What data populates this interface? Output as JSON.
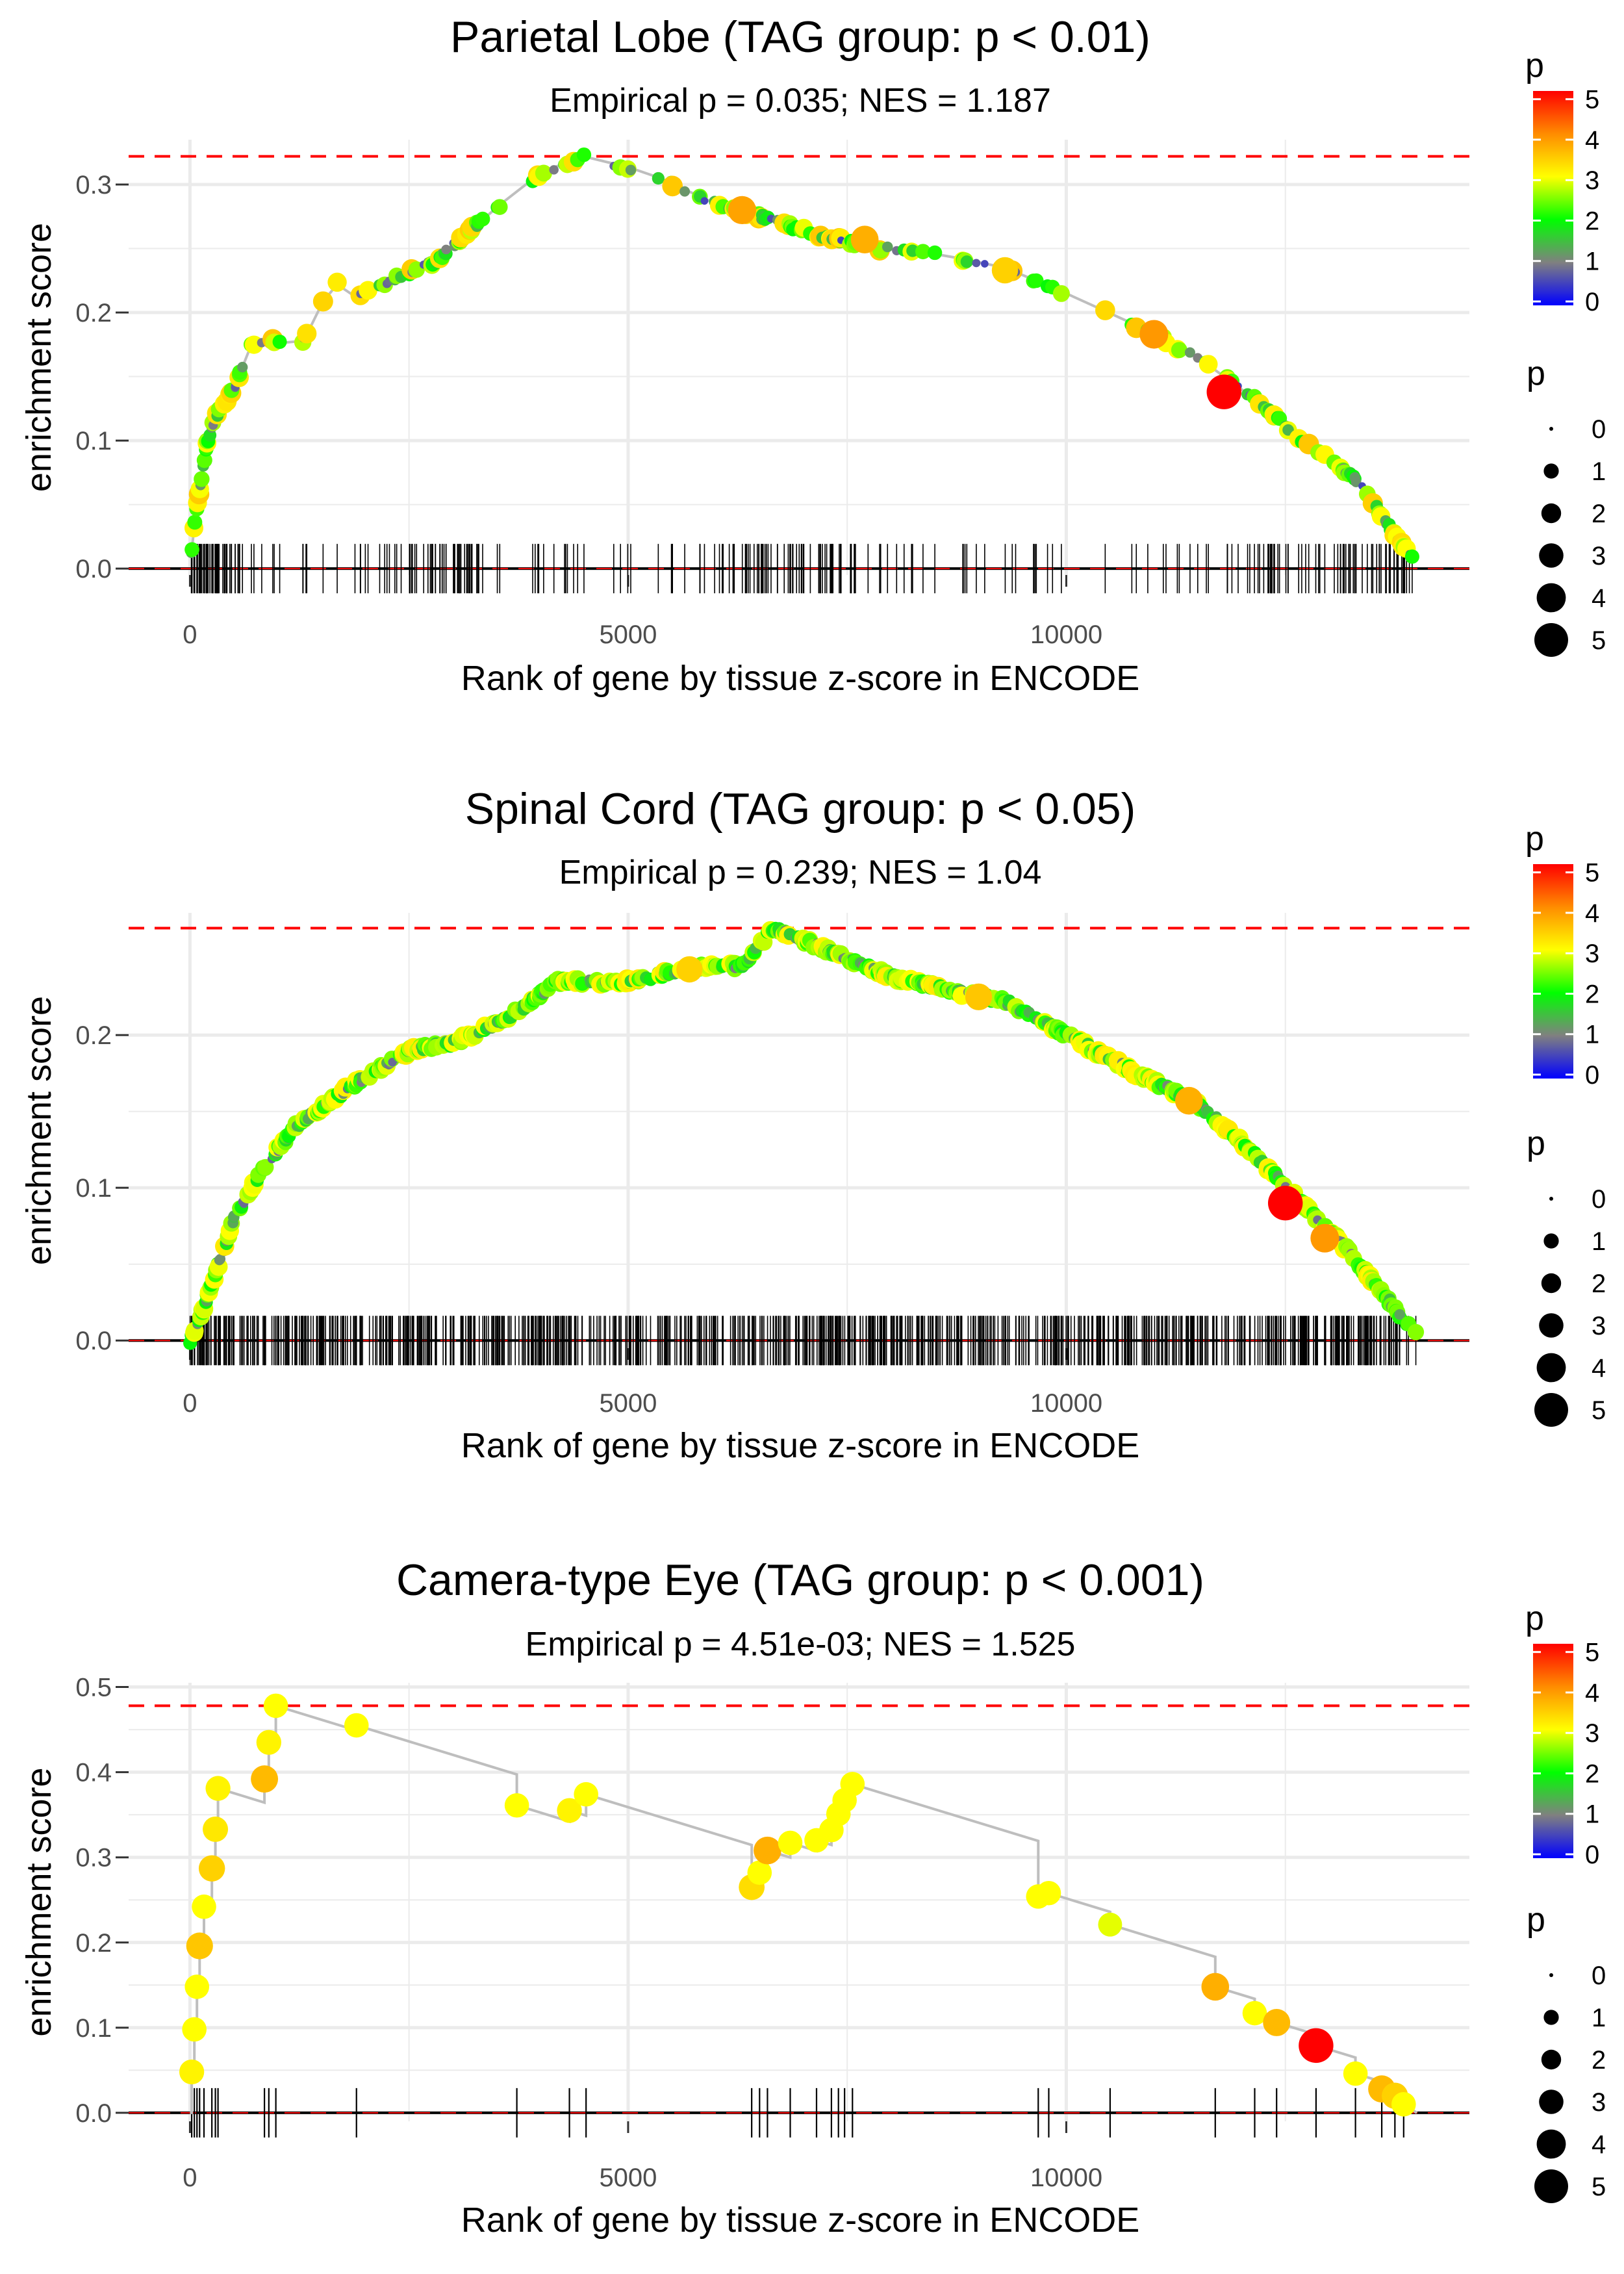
{
  "colors": {
    "threshold_line": "#ff0000",
    "curve": "#bebebe",
    "grid": "#ebebeb",
    "tick_mark": "#000000",
    "gradient_stops": [
      "#0000ff",
      "#808080",
      "#00ff00",
      "#ffff00",
      "#ff8c00",
      "#ff0000"
    ]
  },
  "chart_data": [
    {
      "type": "line",
      "title": "Parietal Lobe (TAG group: p < 0.01)",
      "subtitle": "Empirical p = 0.035; NES = 1.187",
      "xlabel": "Rank of gene by tissue z-score in ENCODE",
      "ylabel": "enrichment score",
      "xlim": [
        -700,
        14600
      ],
      "ylim": [
        -0.005,
        0.335
      ],
      "x_ticks": [
        0,
        5000,
        10000
      ],
      "x_tick_labels": [
        "0",
        "5000",
        "10000"
      ],
      "y_ticks": [
        0,
        0.1,
        0.2,
        0.3
      ],
      "y_tick_labels": [
        "0.0",
        "0.1",
        "0.2",
        "0.3"
      ],
      "max_es": 0.322,
      "max_at": 4500,
      "n_hits": 320,
      "hit_seed": 11,
      "ranks_end": 14000,
      "rank_bands": [
        [
          0,
          600
        ],
        [
          2200,
          3300
        ],
        [
          5800,
          7600
        ],
        [
          12200,
          14000
        ]
      ],
      "profile": [
        [
          0,
          0
        ],
        [
          60,
          0.04
        ],
        [
          200,
          0.1
        ],
        [
          300,
          0.12
        ],
        [
          500,
          0.14
        ],
        [
          700,
          0.175
        ],
        [
          900,
          0.178
        ],
        [
          1100,
          0.175
        ],
        [
          1300,
          0.178
        ],
        [
          1450,
          0.2
        ],
        [
          1650,
          0.225
        ],
        [
          1800,
          0.21
        ],
        [
          2300,
          0.225
        ],
        [
          2800,
          0.24
        ],
        [
          3300,
          0.27
        ],
        [
          3800,
          0.3
        ],
        [
          4200,
          0.315
        ],
        [
          4500,
          0.322
        ],
        [
          5200,
          0.31
        ],
        [
          6000,
          0.285
        ],
        [
          6500,
          0.275
        ],
        [
          7200,
          0.26
        ],
        [
          7900,
          0.25
        ],
        [
          8600,
          0.245
        ],
        [
          9300,
          0.235
        ],
        [
          10000,
          0.215
        ],
        [
          10800,
          0.19
        ],
        [
          11500,
          0.165
        ],
        [
          12100,
          0.135
        ],
        [
          12700,
          0.1
        ],
        [
          13300,
          0.07
        ],
        [
          14000,
          0.003
        ]
      ],
      "point_scale": "small",
      "p_range": [
        0.5,
        3.5
      ],
      "highlight_points": [
        {
          "x": 6300,
          "y": 0.28,
          "p": 3.8
        },
        {
          "x": 7700,
          "y": 0.257,
          "p": 3.7
        },
        {
          "x": 11000,
          "y": 0.183,
          "p": 3.9
        },
        {
          "x": 11800,
          "y": 0.138,
          "p": 5.2
        },
        {
          "x": 9300,
          "y": 0.233,
          "p": 3.4
        }
      ],
      "legend_color": {
        "title": "p",
        "ticks": [
          "0",
          "1",
          "2",
          "3",
          "4",
          "5"
        ]
      },
      "legend_size": {
        "title": "p",
        "labels": [
          "0",
          "1",
          "2",
          "3",
          "4",
          "5"
        ]
      }
    },
    {
      "type": "line",
      "title": "Spinal Cord (TAG group: p < 0.05)",
      "subtitle": "Empirical p = 0.239; NES = 1.04",
      "xlabel": "Rank of gene by tissue z-score in ENCODE",
      "ylabel": "enrichment score",
      "xlim": [
        -700,
        14600
      ],
      "ylim": [
        -0.005,
        0.28
      ],
      "x_ticks": [
        0,
        5000,
        10000
      ],
      "x_tick_labels": [
        "0",
        "5000",
        "10000"
      ],
      "y_ticks": [
        0,
        0.1,
        0.2
      ],
      "y_tick_labels": [
        "0.0",
        "0.1",
        "0.2"
      ],
      "max_es": 0.27,
      "max_at": 6650,
      "n_hits": 900,
      "hit_seed": 29,
      "ranks_end": 14000,
      "rank_bands": [],
      "profile": [
        [
          0,
          0
        ],
        [
          150,
          0.02
        ],
        [
          300,
          0.045
        ],
        [
          500,
          0.08
        ],
        [
          800,
          0.11
        ],
        [
          1200,
          0.14
        ],
        [
          1800,
          0.165
        ],
        [
          2500,
          0.19
        ],
        [
          3000,
          0.195
        ],
        [
          3600,
          0.21
        ],
        [
          4200,
          0.235
        ],
        [
          5000,
          0.235
        ],
        [
          5800,
          0.245
        ],
        [
          6300,
          0.245
        ],
        [
          6650,
          0.27
        ],
        [
          7300,
          0.255
        ],
        [
          8000,
          0.238
        ],
        [
          8600,
          0.23
        ],
        [
          9300,
          0.222
        ],
        [
          10000,
          0.2
        ],
        [
          10800,
          0.175
        ],
        [
          11500,
          0.155
        ],
        [
          12100,
          0.125
        ],
        [
          12600,
          0.095
        ],
        [
          13200,
          0.06
        ],
        [
          14000,
          0.003
        ]
      ],
      "point_scale": "small",
      "p_range": [
        0.8,
        3.2
      ],
      "highlight_points": [
        {
          "x": 12500,
          "y": 0.09,
          "p": 5.2
        },
        {
          "x": 12950,
          "y": 0.067,
          "p": 3.9
        },
        {
          "x": 11400,
          "y": 0.157,
          "p": 3.7
        },
        {
          "x": 9000,
          "y": 0.225,
          "p": 3.5
        },
        {
          "x": 5700,
          "y": 0.243,
          "p": 3.4
        }
      ],
      "legend_color": {
        "title": "p",
        "ticks": [
          "0",
          "1",
          "2",
          "3",
          "4",
          "5"
        ]
      },
      "legend_size": {
        "title": "p",
        "labels": [
          "0",
          "1",
          "2",
          "3",
          "4",
          "5"
        ]
      }
    },
    {
      "type": "scatter",
      "title": "Camera-type Eye (TAG group: p < 0.001)",
      "subtitle": "Empirical p = 4.51e-03; NES = 1.525",
      "xlabel": "Rank of gene by tissue z-score in ENCODE",
      "ylabel": "enrichment score",
      "xlim": [
        -700,
        14600
      ],
      "ylim": [
        -0.01,
        0.505
      ],
      "x_ticks": [
        0,
        5000,
        10000
      ],
      "x_tick_labels": [
        "0",
        "5000",
        "10000"
      ],
      "y_ticks": [
        0,
        0.1,
        0.2,
        0.3,
        0.4,
        0.5
      ],
      "y_tick_labels": [
        "0.0",
        "0.1",
        "0.2",
        "0.3",
        "0.4",
        "0.5"
      ],
      "max_es": 0.478,
      "ranks_end": 14000,
      "gene_points": [
        {
          "x": 20,
          "y": 0.048,
          "p": 3.1
        },
        {
          "x": 50,
          "y": 0.098,
          "p": 3.0
        },
        {
          "x": 80,
          "y": 0.148,
          "p": 3.0
        },
        {
          "x": 110,
          "y": 0.196,
          "p": 3.5
        },
        {
          "x": 160,
          "y": 0.242,
          "p": 3.0
        },
        {
          "x": 250,
          "y": 0.287,
          "p": 3.4
        },
        {
          "x": 290,
          "y": 0.333,
          "p": 3.2
        },
        {
          "x": 320,
          "y": 0.381,
          "p": 3.1
        },
        {
          "x": 850,
          "y": 0.392,
          "p": 3.6
        },
        {
          "x": 900,
          "y": 0.435,
          "p": 3.1
        },
        {
          "x": 980,
          "y": 0.478,
          "p": 3.0
        },
        {
          "x": 1900,
          "y": 0.455,
          "p": 3.0
        },
        {
          "x": 3730,
          "y": 0.361,
          "p": 3.0
        },
        {
          "x": 4330,
          "y": 0.355,
          "p": 3.1
        },
        {
          "x": 4520,
          "y": 0.374,
          "p": 3.0
        },
        {
          "x": 6410,
          "y": 0.265,
          "p": 3.3
        },
        {
          "x": 6500,
          "y": 0.282,
          "p": 3.0
        },
        {
          "x": 6590,
          "y": 0.308,
          "p": 3.7
        },
        {
          "x": 6850,
          "y": 0.317,
          "p": 3.0
        },
        {
          "x": 7150,
          "y": 0.32,
          "p": 3.0
        },
        {
          "x": 7320,
          "y": 0.332,
          "p": 3.0
        },
        {
          "x": 7400,
          "y": 0.351,
          "p": 3.0
        },
        {
          "x": 7470,
          "y": 0.367,
          "p": 3.0
        },
        {
          "x": 7560,
          "y": 0.386,
          "p": 3.0
        },
        {
          "x": 9680,
          "y": 0.254,
          "p": 3.0
        },
        {
          "x": 9800,
          "y": 0.258,
          "p": 3.0
        },
        {
          "x": 10500,
          "y": 0.221,
          "p": 2.9
        },
        {
          "x": 11700,
          "y": 0.148,
          "p": 3.7
        },
        {
          "x": 12150,
          "y": 0.117,
          "p": 3.0
        },
        {
          "x": 12400,
          "y": 0.106,
          "p": 3.6
        },
        {
          "x": 12850,
          "y": 0.079,
          "p": 5.2
        },
        {
          "x": 13300,
          "y": 0.046,
          "p": 3.0
        },
        {
          "x": 13600,
          "y": 0.028,
          "p": 3.6
        },
        {
          "x": 13750,
          "y": 0.02,
          "p": 3.4
        },
        {
          "x": 13850,
          "y": 0.01,
          "p": 3.0
        }
      ],
      "legend_color": {
        "title": "p",
        "ticks": [
          "0",
          "1",
          "2",
          "3",
          "4",
          "5"
        ]
      },
      "legend_size": {
        "title": "p",
        "labels": [
          "0",
          "1",
          "2",
          "3",
          "4",
          "5"
        ]
      }
    }
  ]
}
